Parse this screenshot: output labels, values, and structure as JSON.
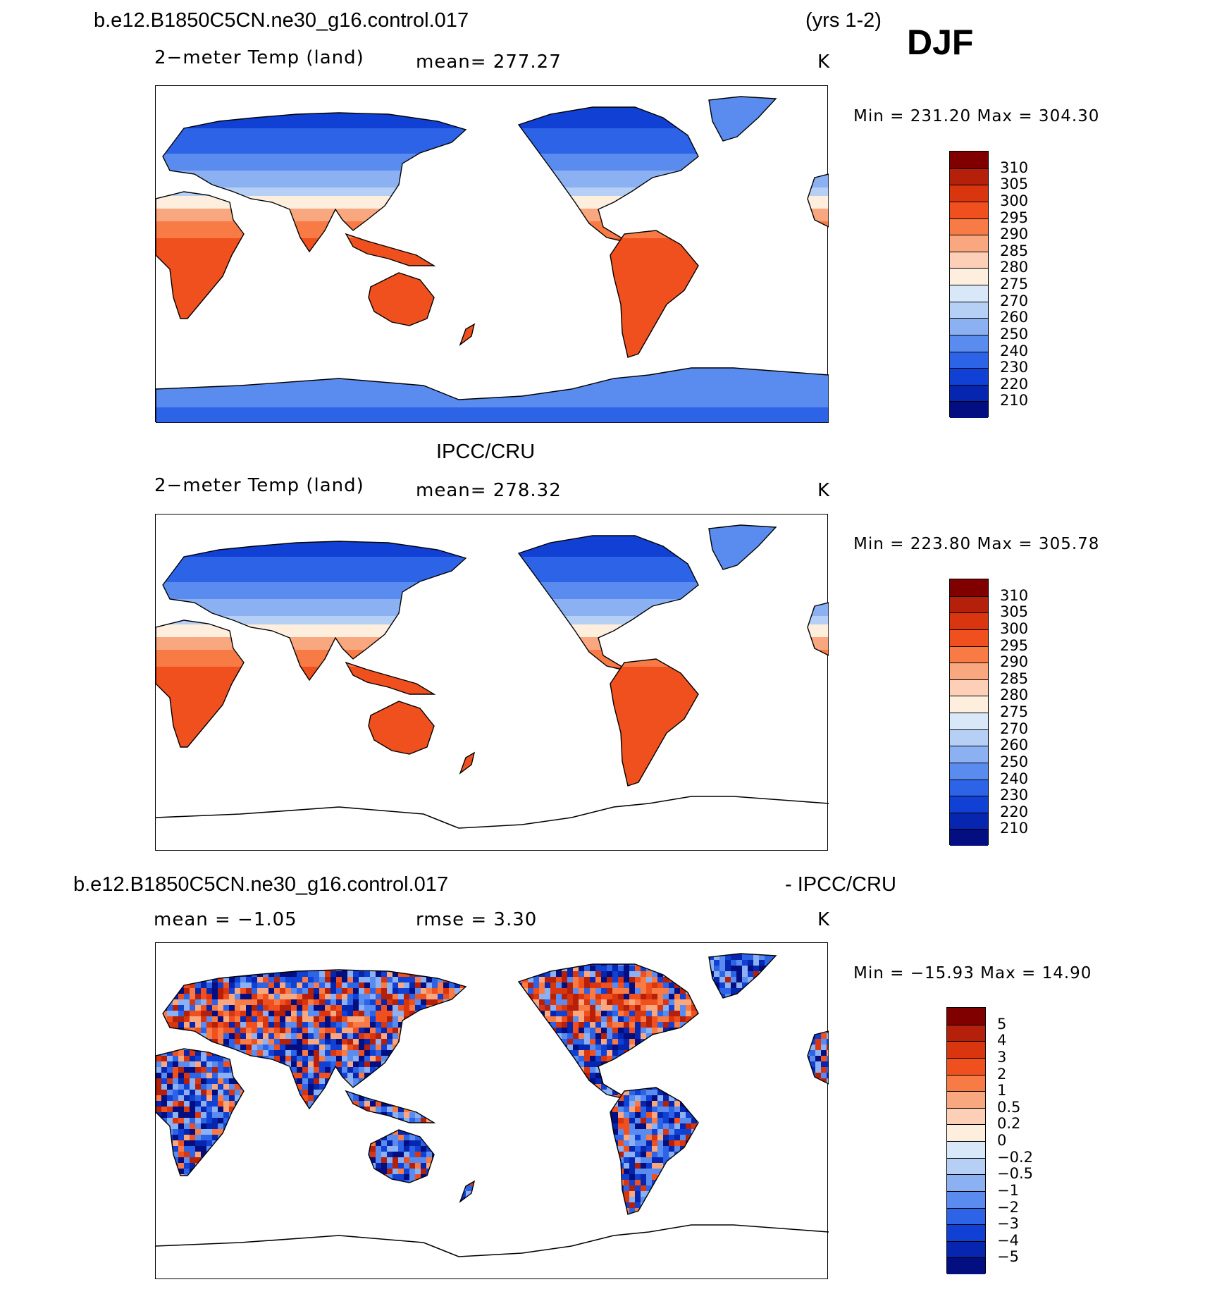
{
  "header": {
    "case_name": "b.e12.B1850C5CN.ne30_g16.control.017",
    "years": "(yrs 1-2)",
    "season": "DJF"
  },
  "panels": [
    {
      "id": "model",
      "title": "",
      "variable": "2−meter Temp (land)",
      "stat_left": "mean=  277.27",
      "stat_right": "",
      "units": "K",
      "minmax": "Min  =  231.20  Max  =  304.30",
      "colorbar_labels": [
        "310",
        "305",
        "300",
        "295",
        "290",
        "285",
        "280",
        "275",
        "270",
        "260",
        "250",
        "240",
        "230",
        "220",
        "210"
      ],
      "antarctica_filled": true
    },
    {
      "id": "obs",
      "title": "IPCC/CRU",
      "variable": "2−meter Temp (land)",
      "stat_left": "mean=  278.32",
      "stat_right": "",
      "units": "K",
      "minmax": "Min  =  223.80  Max  =  305.78",
      "colorbar_labels": [
        "310",
        "305",
        "300",
        "295",
        "290",
        "285",
        "280",
        "275",
        "270",
        "260",
        "250",
        "240",
        "230",
        "220",
        "210"
      ],
      "antarctica_filled": false
    },
    {
      "id": "diff",
      "title_left": "b.e12.B1850C5CN.ne30_g16.control.017",
      "title_right": "- IPCC/CRU",
      "variable": "mean  =    −1.05",
      "stat_left": "rmse  =      3.30",
      "units": "K",
      "minmax": "Min  =  −15.93  Max  =    14.90",
      "colorbar_labels": [
        "5",
        "4",
        "3",
        "2",
        "1",
        "0.5",
        "0.2",
        "0",
        "−0.2",
        "−0.5",
        "−1",
        "−2",
        "−3",
        "−4",
        "−5"
      ],
      "antarctica_filled": false
    }
  ],
  "colors": {
    "temp_scale": [
      "#800000",
      "#b5200a",
      "#d9360f",
      "#f0501e",
      "#f87a45",
      "#f9a77e",
      "#fccfb6",
      "#fdeedd",
      "#d8e8f8",
      "#b6d0f5",
      "#8cb1f2",
      "#5a8cef",
      "#2d63e6",
      "#1140d4",
      "#0626b0",
      "#030e80"
    ],
    "diff_scale": [
      "#800000",
      "#b5200a",
      "#d9360f",
      "#f0501e",
      "#f87a45",
      "#f9a77e",
      "#fccfb6",
      "#fdeedd",
      "#d8e8f8",
      "#b6d0f5",
      "#8cb1f2",
      "#5a8cef",
      "#2d63e6",
      "#1140d4",
      "#0626b0",
      "#030e80"
    ]
  }
}
